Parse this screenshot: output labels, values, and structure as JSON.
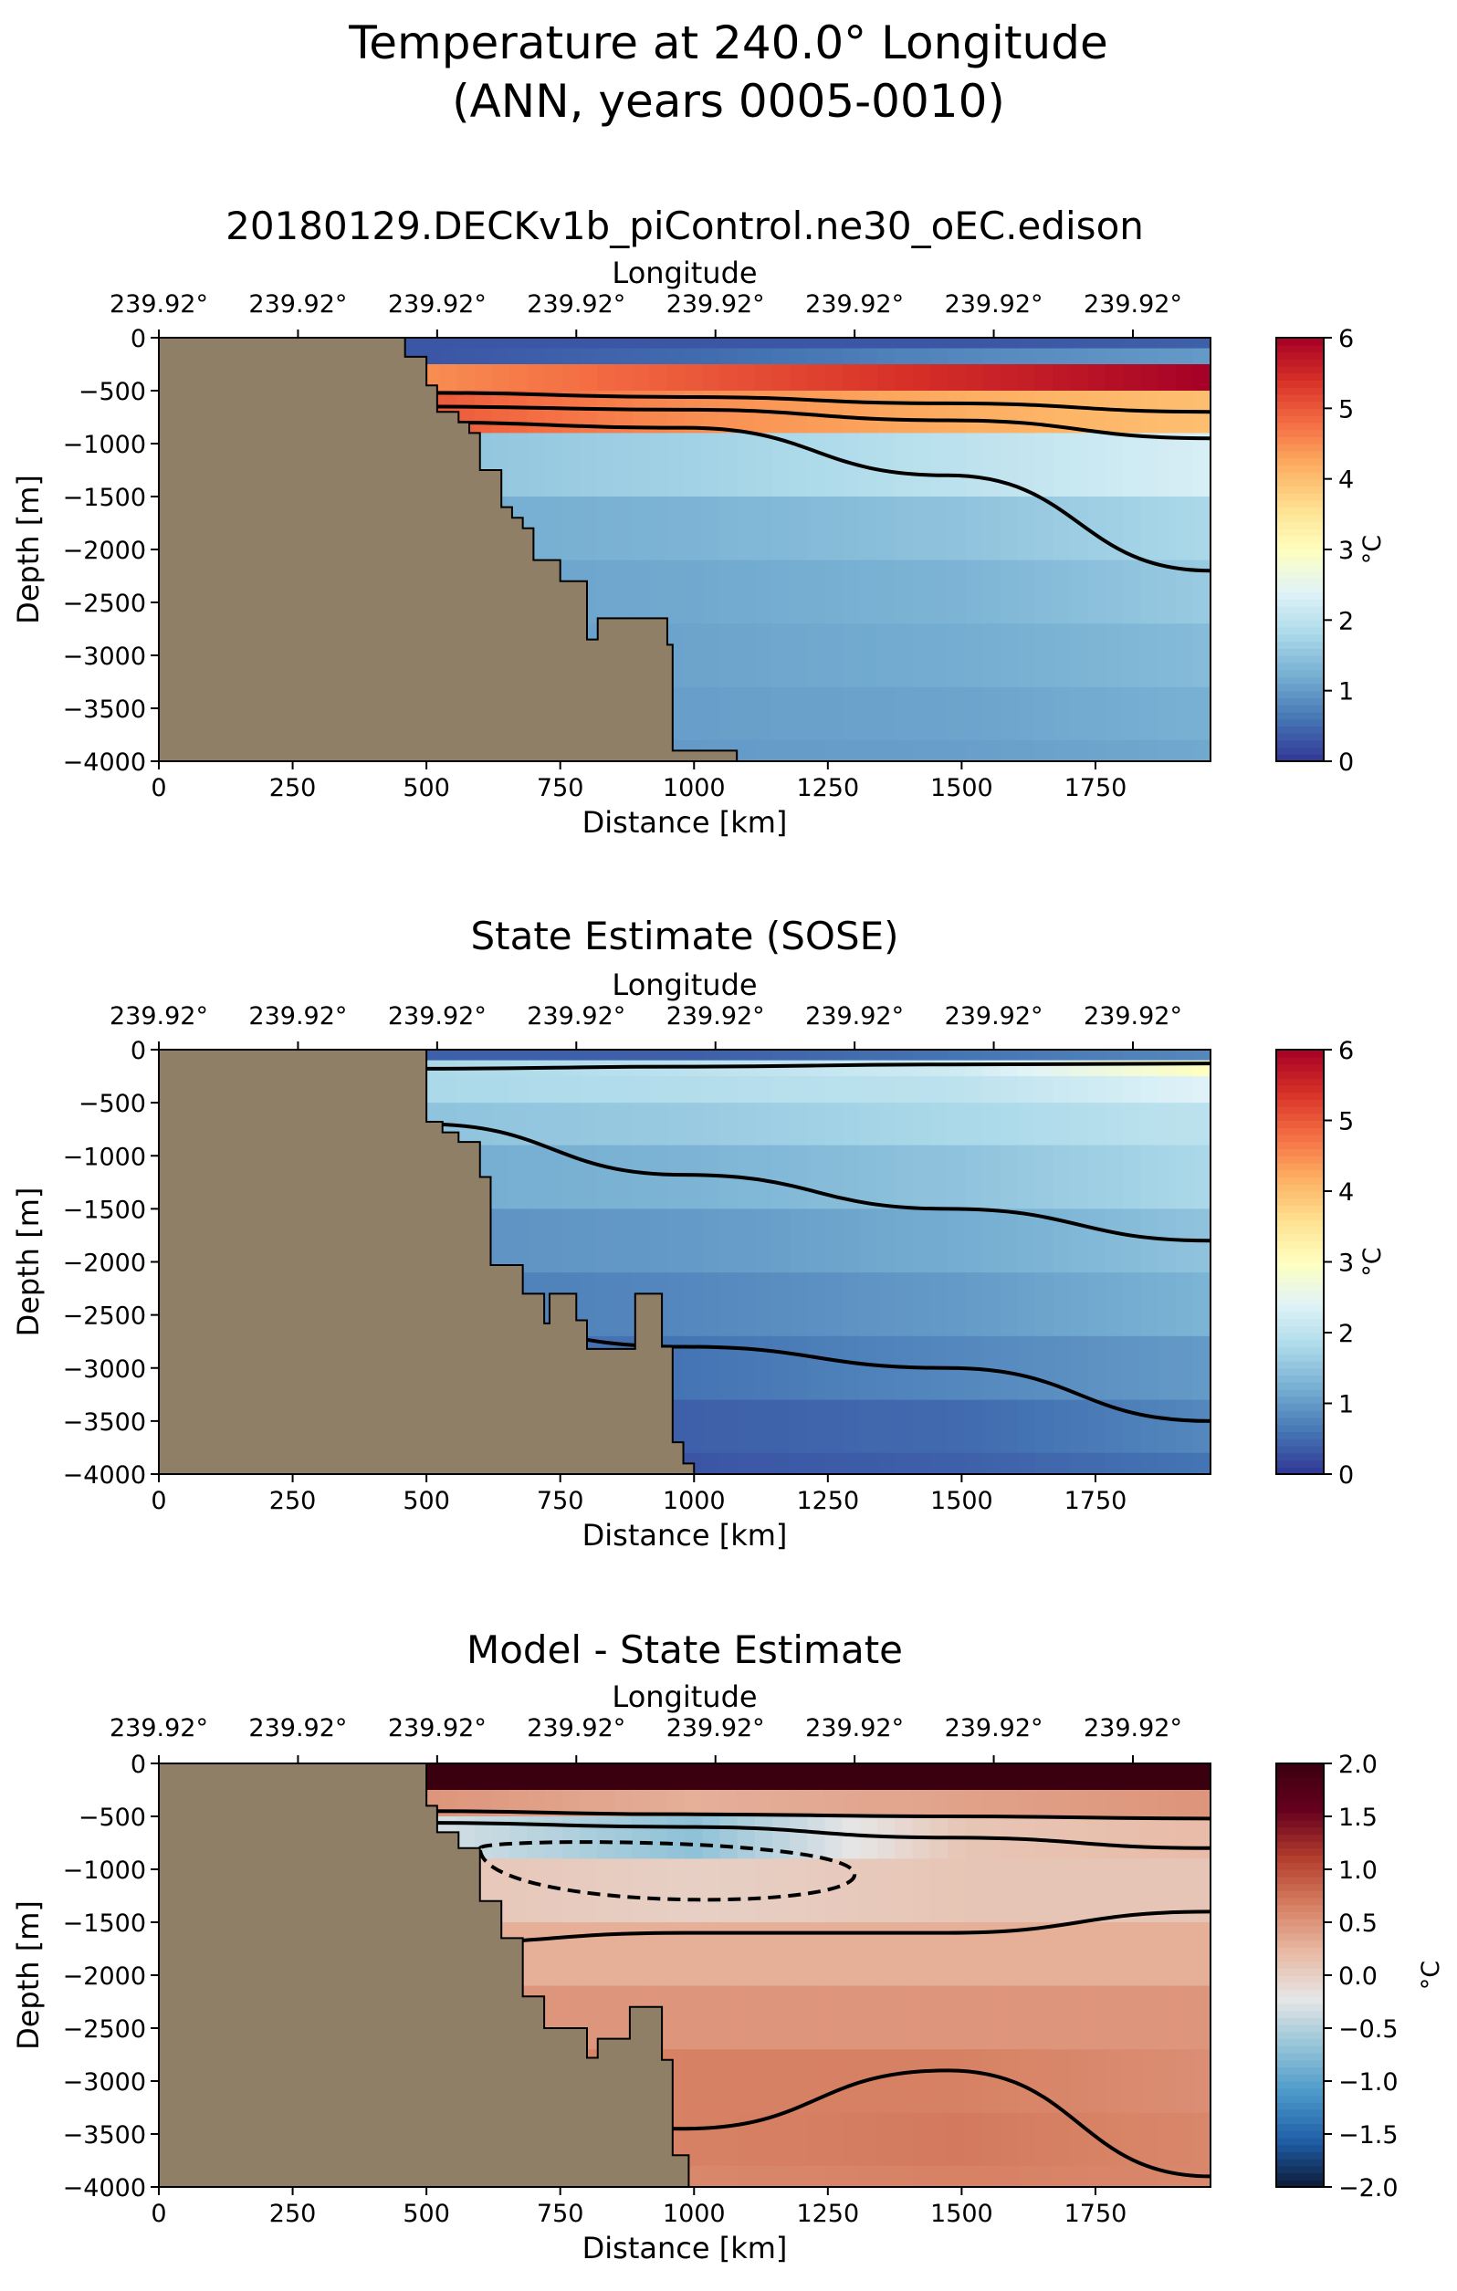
{
  "figure": {
    "title_line1": "Temperature at 240.0° Longitude",
    "title_line2": "(ANN, years 0005-0010)"
  },
  "colors": {
    "land": "#8f7f66",
    "contour": "#000000",
    "temp_colormap": [
      "#313695",
      "#4575b4",
      "#74add1",
      "#abd9e9",
      "#e0f3f8",
      "#ffffbf",
      "#fee090",
      "#fdae61",
      "#f46d43",
      "#d73027",
      "#a50026"
    ],
    "diff_colormap": [
      "#0d1a38",
      "#1f5fa8",
      "#4b98c9",
      "#94c4d8",
      "#e6e6e6",
      "#e8b9a4",
      "#d67f62",
      "#b33d2d",
      "#67001f",
      "#3a0010"
    ]
  },
  "chart_data": [
    {
      "type": "heatmap",
      "title": "20180129.DECKv1b_piControl.ne30_oEC.edison",
      "xlabel": "Distance [km]",
      "ylabel": "Depth [m]",
      "top_axis_label": "Longitude",
      "top_ticks": [
        "239.92°",
        "239.92°",
        "239.92°",
        "239.92°",
        "239.92°",
        "239.92°",
        "239.92°",
        "239.92°"
      ],
      "top_tick_positions": [
        0,
        260,
        520,
        780,
        1040,
        1300,
        1560,
        1820
      ],
      "xlim": [
        0,
        1965
      ],
      "ylim": [
        -4000,
        0
      ],
      "xticks": [
        0,
        250,
        500,
        750,
        1000,
        1250,
        1500,
        1750
      ],
      "yticks": [
        0,
        -500,
        -1000,
        -1500,
        -2000,
        -2500,
        -3000,
        -3500,
        -4000
      ],
      "colorbar": {
        "label": "°C",
        "min": 0,
        "max": 6,
        "ticks": [
          0,
          1,
          2,
          3,
          4,
          5,
          6
        ],
        "cmap": "temp"
      },
      "land_boundary": [
        [
          0,
          0
        ],
        [
          460,
          0
        ],
        [
          460,
          -180
        ],
        [
          500,
          -180
        ],
        [
          500,
          -450
        ],
        [
          520,
          -450
        ],
        [
          520,
          -700
        ],
        [
          560,
          -700
        ],
        [
          560,
          -800
        ],
        [
          580,
          -800
        ],
        [
          580,
          -900
        ],
        [
          600,
          -900
        ],
        [
          600,
          -1250
        ],
        [
          640,
          -1250
        ],
        [
          640,
          -1600
        ],
        [
          660,
          -1600
        ],
        [
          660,
          -1700
        ],
        [
          680,
          -1700
        ],
        [
          680,
          -1800
        ],
        [
          700,
          -1800
        ],
        [
          700,
          -2100
        ],
        [
          750,
          -2100
        ],
        [
          750,
          -2300
        ],
        [
          800,
          -2300
        ],
        [
          800,
          -2850
        ],
        [
          820,
          -2850
        ],
        [
          820,
          -2650
        ],
        [
          950,
          -2650
        ],
        [
          950,
          -2900
        ],
        [
          960,
          -2900
        ],
        [
          960,
          -3900
        ],
        [
          1080,
          -3900
        ],
        [
          1080,
          -4000
        ],
        [
          0,
          -4000
        ]
      ],
      "field": [
        {
          "d": 0,
          "t": [
            0.3,
            0.3,
            4.2,
            5.5,
            1.5,
            1.2,
            1.1,
            1.05,
            1.0,
            1.0
          ]
        },
        {
          "d": 500,
          "t": [
            0.3,
            0.3,
            4.5,
            5.0,
            1.5,
            1.2,
            1.1,
            1.05,
            1.0,
            1.0
          ]
        },
        {
          "d": 1000,
          "t": [
            0.3,
            0.5,
            5.0,
            4.5,
            1.7,
            1.3,
            1.15,
            1.1,
            1.05,
            1.0
          ]
        },
        {
          "d": 1500,
          "t": [
            0.3,
            0.8,
            5.5,
            4.2,
            2.0,
            1.5,
            1.3,
            1.2,
            1.1,
            1.05
          ]
        },
        {
          "d": 1965,
          "t": [
            0.4,
            1.0,
            6.0,
            4.0,
            2.3,
            1.8,
            1.6,
            1.4,
            1.25,
            1.15
          ]
        }
      ],
      "contours": [
        {
          "depth": [
            -500,
            -520,
            -560,
            -620,
            -700
          ],
          "smooth": true
        },
        {
          "depth": [
            -650,
            -650,
            -680,
            -780,
            -950
          ],
          "smooth": true
        },
        {
          "depth": [
            -800,
            -800,
            -850,
            -1300,
            -2200
          ],
          "smooth": true
        }
      ]
    },
    {
      "type": "heatmap",
      "title": "State Estimate (SOSE)",
      "xlabel": "Distance [km]",
      "ylabel": "Depth [m]",
      "top_axis_label": "Longitude",
      "top_ticks": [
        "239.92°",
        "239.92°",
        "239.92°",
        "239.92°",
        "239.92°",
        "239.92°",
        "239.92°",
        "239.92°"
      ],
      "top_tick_positions": [
        0,
        260,
        520,
        780,
        1040,
        1300,
        1560,
        1820
      ],
      "xlim": [
        0,
        1965
      ],
      "ylim": [
        -4000,
        0
      ],
      "xticks": [
        0,
        250,
        500,
        750,
        1000,
        1250,
        1500,
        1750
      ],
      "yticks": [
        0,
        -500,
        -1000,
        -1500,
        -2000,
        -2500,
        -3000,
        -3500,
        -4000
      ],
      "colorbar": {
        "label": "°C",
        "min": 0,
        "max": 6,
        "ticks": [
          0,
          1,
          2,
          3,
          4,
          5,
          6
        ],
        "cmap": "temp"
      },
      "land_boundary": [
        [
          0,
          0
        ],
        [
          500,
          0
        ],
        [
          500,
          -680
        ],
        [
          530,
          -680
        ],
        [
          530,
          -780
        ],
        [
          560,
          -780
        ],
        [
          560,
          -870
        ],
        [
          600,
          -870
        ],
        [
          600,
          -1200
        ],
        [
          620,
          -1200
        ],
        [
          620,
          -2030
        ],
        [
          680,
          -2030
        ],
        [
          680,
          -2300
        ],
        [
          720,
          -2300
        ],
        [
          720,
          -2580
        ],
        [
          730,
          -2580
        ],
        [
          730,
          -2300
        ],
        [
          780,
          -2300
        ],
        [
          780,
          -2550
        ],
        [
          800,
          -2550
        ],
        [
          800,
          -2820
        ],
        [
          890,
          -2820
        ],
        [
          890,
          -2300
        ],
        [
          940,
          -2300
        ],
        [
          940,
          -2800
        ],
        [
          960,
          -2800
        ],
        [
          960,
          -3700
        ],
        [
          980,
          -3700
        ],
        [
          980,
          -3900
        ],
        [
          1000,
          -3900
        ],
        [
          1000,
          -4000
        ],
        [
          0,
          -4000
        ]
      ],
      "field": [
        {
          "d": 0,
          "t": [
            0.4,
            1.6,
            1.8,
            1.5,
            1.2,
            0.9,
            0.7,
            0.5,
            0.3,
            0.25
          ]
        },
        {
          "d": 500,
          "t": [
            0.4,
            1.8,
            1.8,
            1.5,
            1.2,
            0.9,
            0.7,
            0.5,
            0.35,
            0.25
          ]
        },
        {
          "d": 1000,
          "t": [
            0.4,
            2.0,
            1.9,
            1.6,
            1.3,
            1.0,
            0.8,
            0.6,
            0.4,
            0.3
          ]
        },
        {
          "d": 1500,
          "t": [
            0.6,
            2.2,
            2.0,
            1.8,
            1.5,
            1.2,
            1.0,
            0.8,
            0.5,
            0.4
          ]
        },
        {
          "d": 1965,
          "t": [
            0.8,
            3.0,
            2.4,
            2.0,
            1.8,
            1.5,
            1.3,
            1.0,
            0.8,
            0.6
          ]
        }
      ],
      "contours": [
        {
          "depth": [
            -200,
            -180,
            -160,
            -140,
            -130
          ],
          "smooth": true
        },
        {
          "depth": [
            -700,
            -700,
            -1180,
            -1500,
            -1800
          ],
          "smooth": true
        },
        {
          "depth": [
            -2500,
            -2550,
            -2800,
            -3000,
            -3500
          ],
          "smooth": true
        }
      ]
    },
    {
      "type": "heatmap",
      "title": "Model - State Estimate",
      "xlabel": "Distance [km]",
      "ylabel": "Depth [m]",
      "top_axis_label": "Longitude",
      "top_ticks": [
        "239.92°",
        "239.92°",
        "239.92°",
        "239.92°",
        "239.92°",
        "239.92°",
        "239.92°",
        "239.92°"
      ],
      "top_tick_positions": [
        0,
        260,
        520,
        780,
        1040,
        1300,
        1560,
        1820
      ],
      "xlim": [
        0,
        1965
      ],
      "ylim": [
        -4000,
        0
      ],
      "xticks": [
        0,
        250,
        500,
        750,
        1000,
        1250,
        1500,
        1750
      ],
      "yticks": [
        0,
        -500,
        -1000,
        -1500,
        -2000,
        -2500,
        -3000,
        -3500,
        -4000
      ],
      "colorbar": {
        "label": "°C",
        "min": -2.0,
        "max": 2.0,
        "ticks": [
          -2.0,
          -1.5,
          -1.0,
          -0.5,
          0.0,
          0.5,
          1.0,
          1.5,
          2.0
        ],
        "tick_labels": [
          "−2.0",
          "−1.5",
          "−1.0",
          "−0.5",
          "0.0",
          "0.5",
          "1.0",
          "1.5",
          "2.0"
        ],
        "cmap": "diff"
      },
      "land_boundary": [
        [
          0,
          0
        ],
        [
          500,
          0
        ],
        [
          500,
          -400
        ],
        [
          520,
          -400
        ],
        [
          520,
          -650
        ],
        [
          560,
          -650
        ],
        [
          560,
          -800
        ],
        [
          600,
          -800
        ],
        [
          600,
          -1300
        ],
        [
          640,
          -1300
        ],
        [
          640,
          -1650
        ],
        [
          680,
          -1650
        ],
        [
          680,
          -2200
        ],
        [
          720,
          -2200
        ],
        [
          720,
          -2500
        ],
        [
          800,
          -2500
        ],
        [
          800,
          -2780
        ],
        [
          820,
          -2780
        ],
        [
          820,
          -2600
        ],
        [
          880,
          -2600
        ],
        [
          880,
          -2300
        ],
        [
          940,
          -2300
        ],
        [
          940,
          -2800
        ],
        [
          960,
          -2800
        ],
        [
          960,
          -3700
        ],
        [
          990,
          -3700
        ],
        [
          990,
          -4000
        ],
        [
          0,
          -4000
        ]
      ],
      "field": [
        {
          "d": 0,
          "t": [
            2.0,
            2.0,
            0.8,
            0.3,
            0.1,
            0.2,
            0.4,
            0.5,
            0.55,
            0.5
          ]
        },
        {
          "d": 500,
          "t": [
            2.0,
            2.0,
            0.5,
            -0.3,
            0.1,
            0.3,
            0.5,
            0.6,
            0.6,
            0.5
          ]
        },
        {
          "d": 1000,
          "t": [
            2.0,
            2.0,
            0.3,
            -0.7,
            0.0,
            0.3,
            0.5,
            0.65,
            0.65,
            0.6
          ]
        },
        {
          "d": 1500,
          "t": [
            2.0,
            2.0,
            0.4,
            0.1,
            0.1,
            0.3,
            0.5,
            0.65,
            0.7,
            0.65
          ]
        },
        {
          "d": 1965,
          "t": [
            2.0,
            2.0,
            0.5,
            0.2,
            0.1,
            0.3,
            0.5,
            0.55,
            0.6,
            0.6
          ]
        }
      ],
      "contours": [
        {
          "depth": [
            -420,
            -450,
            -480,
            -500,
            -520
          ],
          "smooth": true
        },
        {
          "depth": [
            -560,
            -560,
            -600,
            -700,
            -800
          ],
          "smooth": true
        },
        {
          "depth": [
            -1800,
            -1700,
            -1600,
            -1600,
            -1400
          ],
          "smooth": true
        },
        {
          "depth": [
            -3400,
            -3400,
            -3450,
            -2900,
            -3900
          ],
          "smooth": true
        }
      ],
      "dashed_contours": [
        {
          "depth": [
            -800,
            -700,
            -1400
          ],
          "dmin": 600,
          "dmax": 1300
        }
      ]
    }
  ]
}
